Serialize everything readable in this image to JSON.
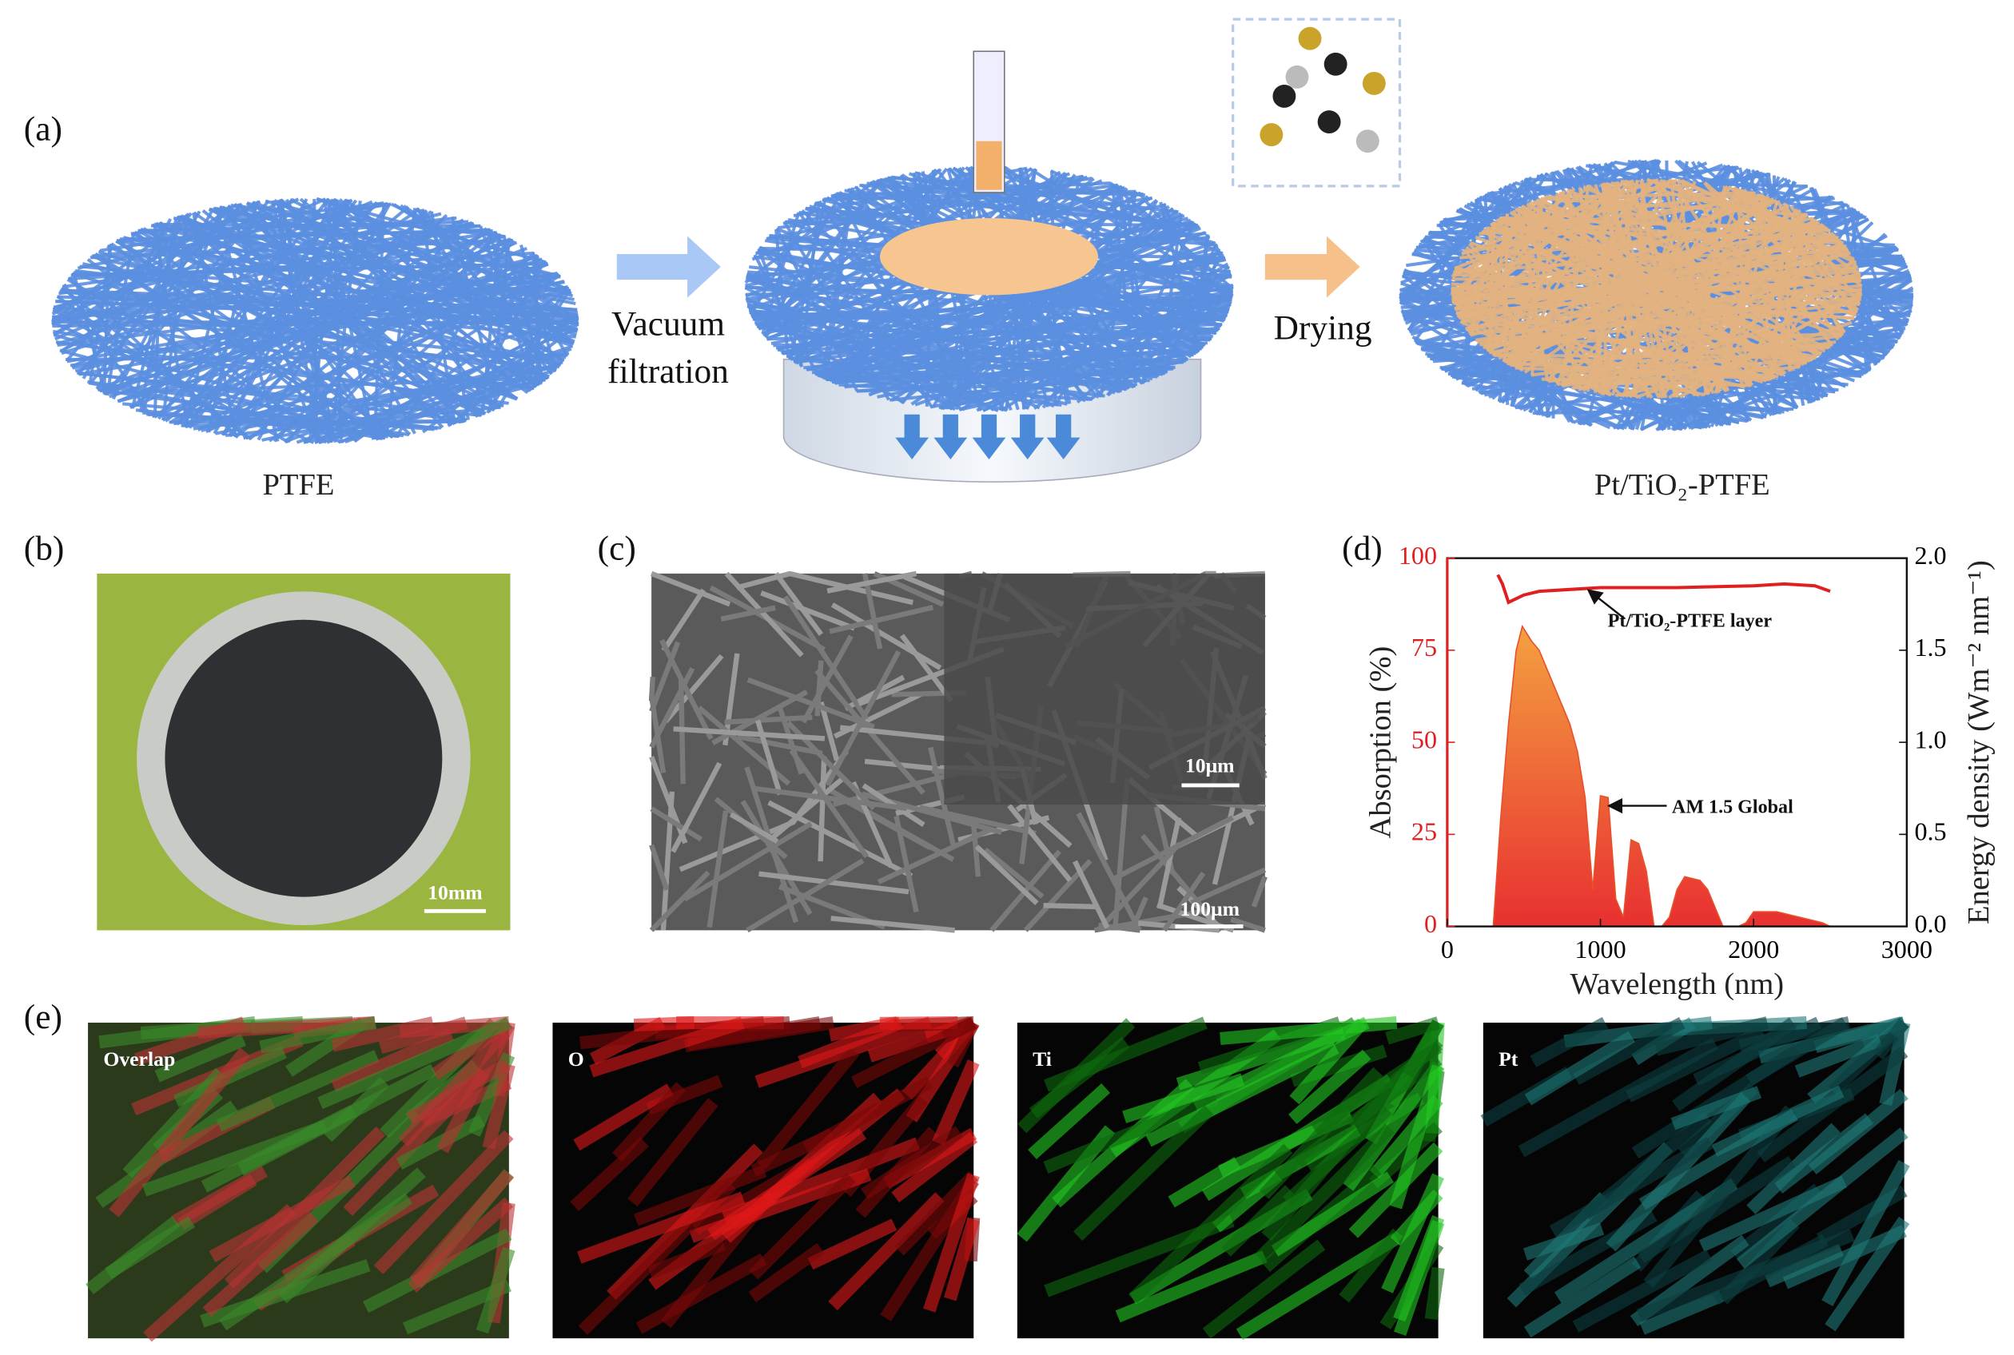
{
  "panels": {
    "a": {
      "label": "(a)",
      "left_caption": "PTFE",
      "step1_line1": "Vacuum",
      "step1_line2": "filtration",
      "step2": "Drying",
      "right_caption": "Pt/TiO₂-PTFE"
    },
    "b": {
      "label": "(b)",
      "scale_bar": "10mm"
    },
    "c": {
      "label": "(c)",
      "scale_bar_inset": "10μm",
      "scale_bar_main": "100μm"
    },
    "d": {
      "label": "(d)"
    },
    "e": {
      "label": "(e)",
      "maps": [
        "Overlap",
        "O",
        "Ti",
        "Pt"
      ]
    }
  },
  "chart_data": {
    "type": "line",
    "xlabel": "Wavelength (nm)",
    "ylabel": "Absorption (%)",
    "y2label": "Energy density (Wm⁻² nm⁻¹)",
    "xlim": [
      0,
      3000
    ],
    "xticks": [
      0,
      1000,
      2000,
      3000
    ],
    "ylim": [
      0,
      100
    ],
    "yticks": [
      0,
      25,
      50,
      75,
      100
    ],
    "y2lim": [
      0,
      2.0
    ],
    "y2ticks": [
      {
        "value": 0,
        "label": "0.0"
      },
      0.5,
      {
        "value": 1,
        "label": "1.0"
      },
      1.5,
      {
        "value": 2,
        "label": "2.0"
      }
    ],
    "series": [
      {
        "name": "Pt/TiO₂-PTFE layer",
        "color": "#e02020",
        "x": [
          330,
          360,
          400,
          450,
          500,
          600,
          800,
          1000,
          1500,
          2000,
          2200,
          2400,
          2500
        ],
        "values": [
          95.5,
          93,
          88,
          89,
          90,
          91,
          91.5,
          92,
          92,
          92.5,
          93,
          92.5,
          91
        ]
      },
      {
        "name": "AM 1.5 Global",
        "color": "#e8502a",
        "axis": "y2",
        "x": [
          300,
          350,
          400,
          450,
          490,
          550,
          600,
          650,
          700,
          750,
          800,
          850,
          900,
          950,
          1000,
          1050,
          1100,
          1150,
          1200,
          1250,
          1300,
          1350,
          1400,
          1450,
          1500,
          1550,
          1600,
          1650,
          1700,
          1750,
          1800,
          1850,
          1900,
          1950,
          2000,
          2050,
          2100,
          2150,
          2200,
          2250,
          2300,
          2350,
          2400,
          2450,
          2500
        ],
        "values": [
          0,
          0.6,
          1.1,
          1.5,
          1.63,
          1.55,
          1.5,
          1.4,
          1.3,
          1.2,
          1.1,
          0.95,
          0.7,
          0.2,
          0.71,
          0.7,
          0.15,
          0.05,
          0.47,
          0.45,
          0.3,
          0,
          0,
          0.05,
          0.2,
          0.27,
          0.26,
          0.25,
          0.2,
          0.1,
          0,
          0,
          0,
          0.02,
          0.08,
          0.08,
          0.08,
          0.08,
          0.07,
          0.06,
          0.05,
          0.04,
          0.03,
          0.02,
          0
        ]
      }
    ]
  }
}
